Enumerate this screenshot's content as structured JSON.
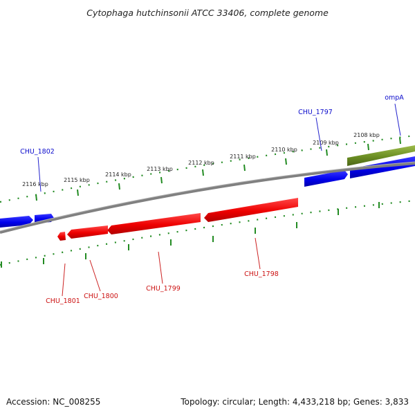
{
  "title": "Cytophaga hutchinsonii ATCC 33406, complete genome",
  "footer": {
    "accession": "Accession: NC_008255",
    "summary": "Topology: circular; Length: 4,433,218 bp; Genes: 3,833"
  },
  "colors": {
    "forward_gene": "#0000ee",
    "reverse_gene": "#ee0000",
    "rna_gene": "#6b8e23",
    "backbone": "#808080",
    "tick": "#228b22"
  },
  "tick_labels": [
    "2108 kbp",
    "2109 kbp",
    "2110 kbp",
    "2111 kbp",
    "2112 kbp",
    "2113 kbp",
    "2114 kbp",
    "2115 kbp",
    "2116 kbp"
  ],
  "gene_labels": {
    "ompA": "ompA",
    "chu1797": "CHU_1797",
    "chu1802": "CHU_1802",
    "chu1801": "CHU_1801",
    "chu1800": "CHU_1800",
    "chu1799": "CHU_1799",
    "chu1798": "CHU_1798"
  }
}
